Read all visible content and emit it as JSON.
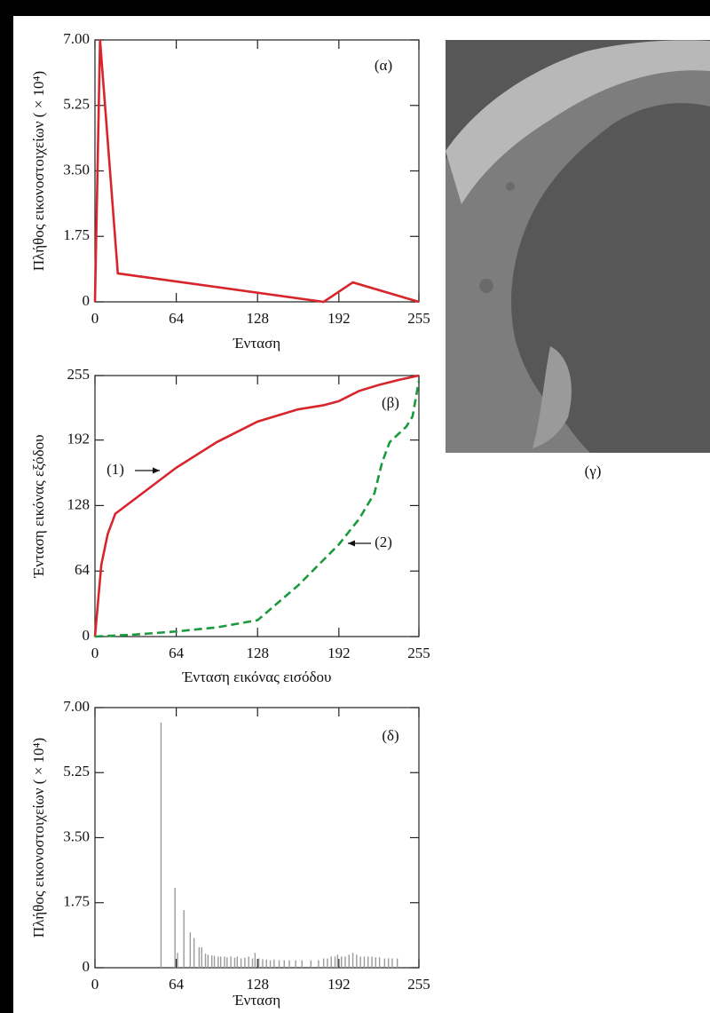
{
  "chart_data": [
    {
      "type": "line",
      "annotation": "(α)",
      "xlabel": "Ένταση",
      "ylabel": "Πλήθος εικονοστοιχείων ( × 10⁴)",
      "xlim": [
        0,
        255
      ],
      "ylim": [
        0,
        7
      ],
      "xticks": [
        0,
        64,
        128,
        192,
        255
      ],
      "yticks": [
        0,
        1.75,
        {
          "value": 3.5,
          "label": "3.50"
        },
        5.25,
        {
          "value": 7,
          "label": "7.00"
        }
      ],
      "series": [
        {
          "color": "#d7262b",
          "dash": false,
          "x": [
            0,
            4,
            18,
            180,
            203,
            255
          ],
          "values": [
            0,
            7,
            0.76,
            0,
            0.52,
            0
          ]
        }
      ]
    },
    {
      "type": "line",
      "annotation": "(β)",
      "xlabel": "Ένταση εικόνας εισόδου",
      "ylabel": "Ένταση εικόνας εξόδου",
      "xlim": [
        0,
        255
      ],
      "ylim": [
        0,
        255
      ],
      "xticks": [
        0,
        64,
        128,
        192,
        255
      ],
      "yticks": [
        0,
        64,
        128,
        192,
        255
      ],
      "series": [
        {
          "name": "(1)",
          "color": "#d7262b",
          "dash": false,
          "x": [
            0,
            5,
            10,
            16,
            32,
            64,
            96,
            128,
            160,
            180,
            192,
            208,
            224,
            240,
            255
          ],
          "values": [
            0,
            70,
            100,
            120,
            135,
            165,
            190,
            210,
            222,
            226,
            230,
            240,
            246,
            251,
            255
          ]
        },
        {
          "name": "(2)",
          "color": "#1a9a3e",
          "dash": true,
          "x": [
            0,
            32,
            64,
            96,
            128,
            160,
            192,
            208,
            220,
            226,
            232,
            245,
            250,
            255
          ],
          "values": [
            0,
            2,
            5,
            9,
            16,
            50,
            90,
            115,
            140,
            170,
            190,
            205,
            215,
            250
          ]
        }
      ]
    },
    {
      "type": "stem",
      "annotation": "(δ)",
      "xlabel": "Ένταση",
      "ylabel": "Πλήθος εικονοστοιχείων ( × 10⁴)",
      "xlim": [
        0,
        255
      ],
      "ylim": [
        0,
        7
      ],
      "xticks": [
        0,
        64,
        128,
        192,
        255
      ],
      "yticks": [
        0,
        1.75,
        {
          "value": 3.5,
          "label": "3.50"
        },
        5.25,
        {
          "value": 7,
          "label": "7.00"
        }
      ],
      "color": "#9a9a9a",
      "x": [
        52,
        63,
        65,
        70,
        75,
        78,
        82,
        84,
        87,
        89,
        92,
        94,
        97,
        99,
        102,
        104,
        107,
        110,
        112,
        115,
        118,
        121,
        124,
        126,
        129,
        132,
        135,
        138,
        141,
        145,
        149,
        153,
        158,
        163,
        170,
        176,
        180,
        183,
        186,
        189,
        191,
        194,
        197,
        200,
        203,
        206,
        209,
        212,
        215,
        218,
        221,
        224,
        228,
        231,
        234,
        238
      ],
      "values": [
        6.6,
        2.15,
        0.4,
        1.55,
        0.95,
        0.8,
        0.55,
        0.55,
        0.38,
        0.35,
        0.33,
        0.32,
        0.3,
        0.3,
        0.3,
        0.28,
        0.3,
        0.27,
        0.3,
        0.25,
        0.27,
        0.3,
        0.25,
        0.4,
        0.25,
        0.23,
        0.22,
        0.2,
        0.22,
        0.2,
        0.2,
        0.2,
        0.2,
        0.2,
        0.2,
        0.2,
        0.25,
        0.25,
        0.3,
        0.3,
        0.35,
        0.3,
        0.3,
        0.35,
        0.4,
        0.35,
        0.3,
        0.3,
        0.3,
        0.3,
        0.28,
        0.28,
        0.25,
        0.25,
        0.25,
        0.25
      ]
    }
  ],
  "image": {
    "caption": "(γ)"
  }
}
